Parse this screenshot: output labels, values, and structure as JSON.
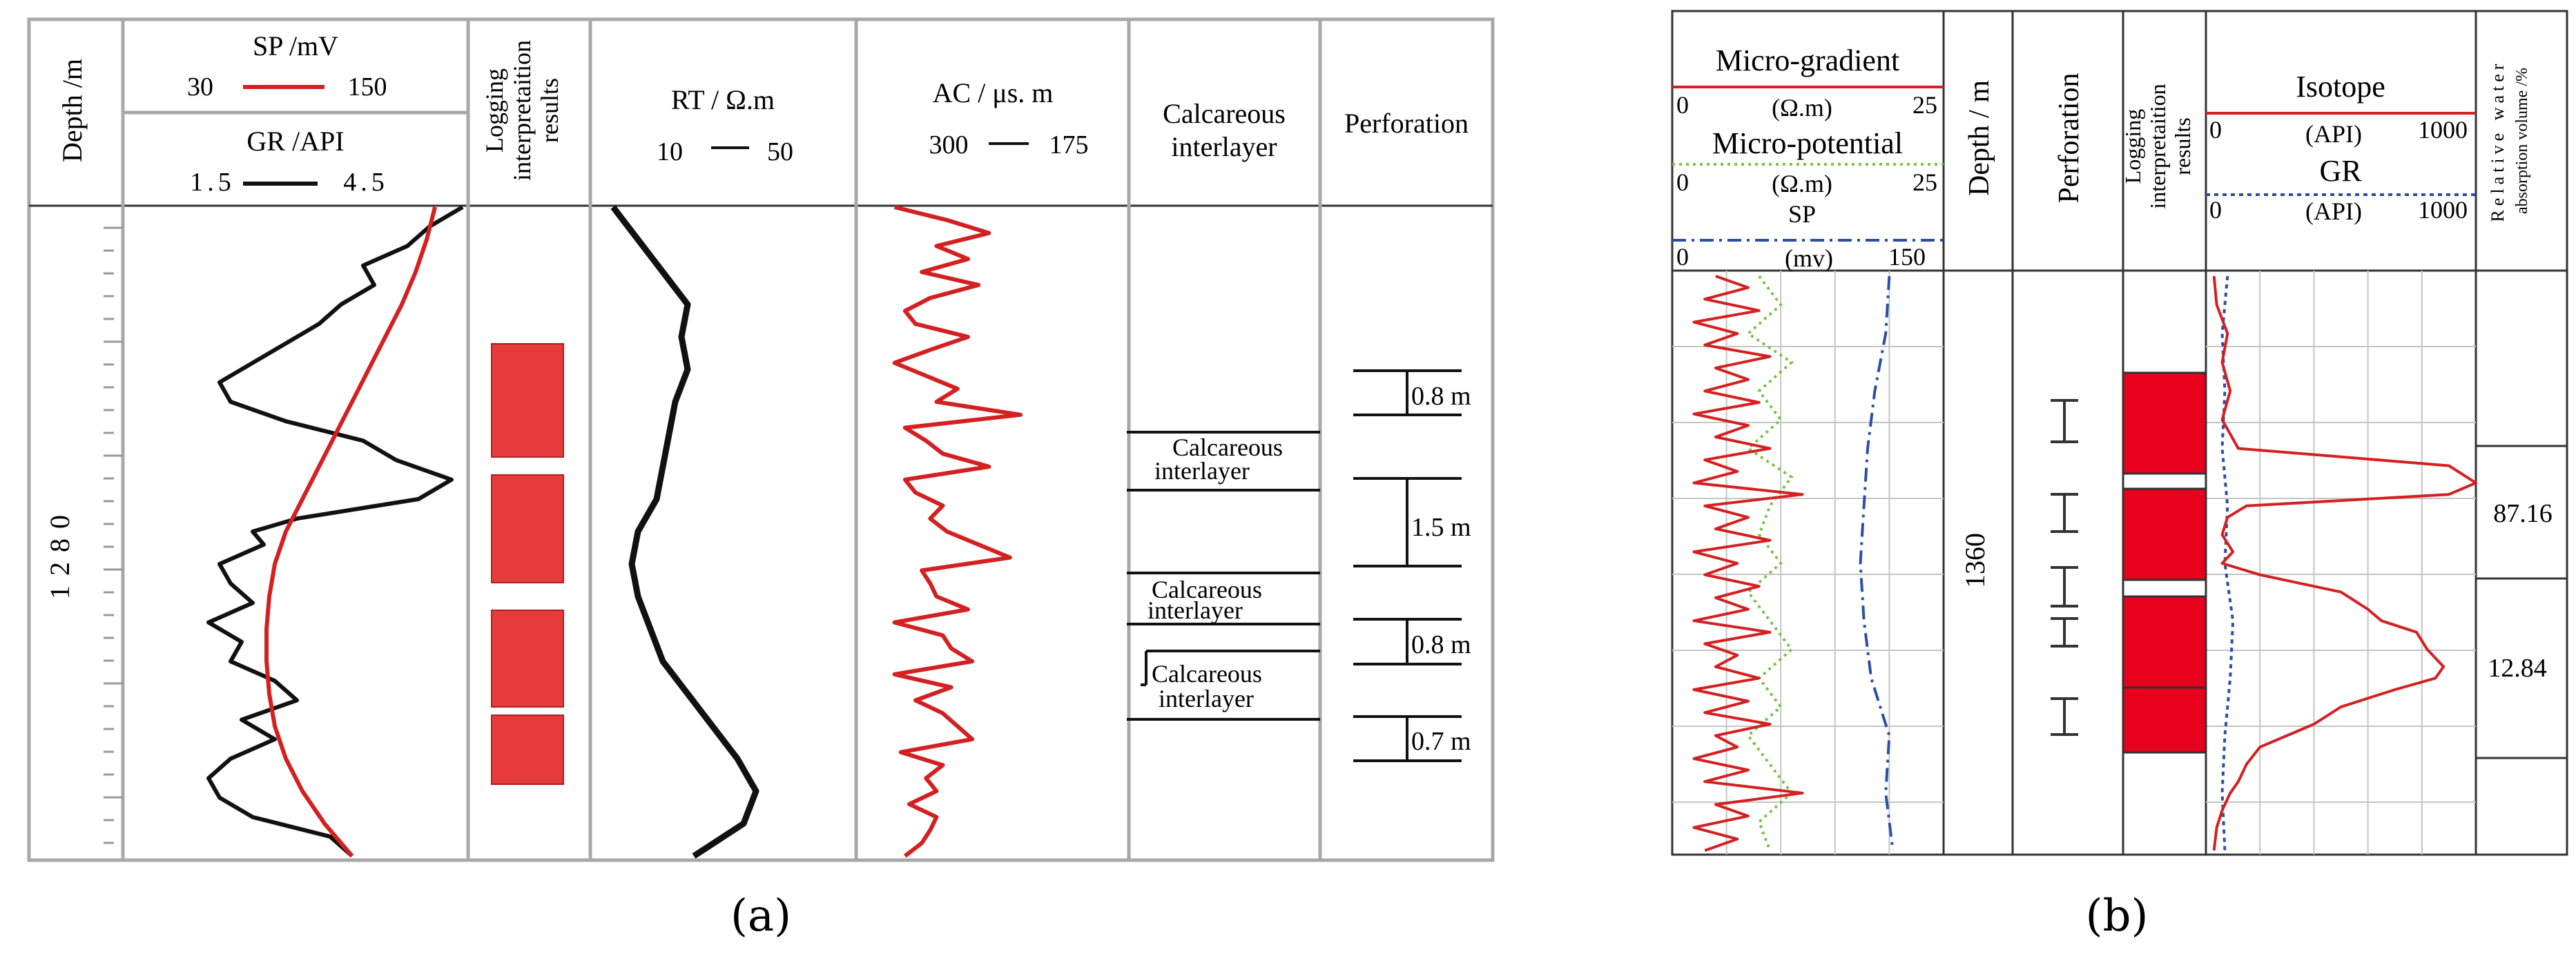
{
  "figure": {
    "caption_a": "(a)",
    "caption_b": "(b)"
  },
  "colors": {
    "red_curve": "#d42020",
    "black_curve": "#111111",
    "red_block": "#e63b3b",
    "red_block_b": "#e8001c",
    "blue_dash": "#2b4fa8",
    "green_dot": "#7cc24a",
    "grid": "#bdbdbd",
    "border": "#a8a8a8"
  },
  "panel_a": {
    "headers": {
      "depth": "Depth /m",
      "sp": "SP /mV",
      "sp_min": "30",
      "sp_max": "150",
      "gr": "GR /API",
      "gr_min": "1.5",
      "gr_max": "4.5",
      "logging_1": "Logging",
      "logging_2": "interpretaition",
      "logging_3": "results",
      "rt": "RT / Ω.m",
      "rt_min": "10",
      "rt_max": "50",
      "ac": "AC / μs. m",
      "ac_min": "300",
      "ac_max": "175",
      "calc_1": "Calcareous",
      "calc_2": "interlayer",
      "perforation": "Perforation"
    },
    "depth_label": "1280",
    "calc_labels": [
      [
        "Calcareous",
        "interlayer"
      ],
      [
        "Calcareous",
        "interlayer"
      ],
      [
        "Calcareous",
        "interlayer"
      ]
    ],
    "perforation_labels": [
      "0.8 m",
      "1.5 m",
      "0.8 m",
      "0.7 m"
    ]
  },
  "panel_b": {
    "headers": {
      "micro_gradient": "Micro-gradient",
      "mg_unit": "(Ω.m)",
      "mg_min": "0",
      "mg_max": "25",
      "micro_potential": "Micro-potential",
      "mp_unit": "(Ω.m)",
      "mp_min": "0",
      "mp_max": "25",
      "sp": "SP",
      "sp_unit": "(mv)",
      "sp_min": "0",
      "sp_max": "150",
      "depth": "Depth / m",
      "perforation": "Perforation",
      "logging_1": "Logging",
      "logging_2": "interpretaition",
      "logging_3": "results",
      "isotope": "Isotope",
      "iso_unit": "(API)",
      "iso_min": "0",
      "iso_max": "1000",
      "gr": "GR",
      "gr_unit": "(API)",
      "gr_min": "0",
      "gr_max": "1000",
      "rel_1": "Relative water",
      "rel_2": "absorption volume /%"
    },
    "depth_label": "1360",
    "rel_values": [
      "87.16",
      "12.84"
    ]
  },
  "chart_data": [
    {
      "type": "line",
      "panel": "a",
      "y_axis": "depth",
      "series": [
        {
          "name": "SP",
          "xlim": [
            30,
            150
          ],
          "color": "red",
          "depth": [
            0,
            0.05,
            0.1,
            0.15,
            0.2,
            0.25,
            0.3,
            0.35,
            0.4,
            0.45,
            0.5,
            0.55,
            0.6,
            0.65,
            0.7,
            0.75,
            0.8,
            0.85,
            0.9,
            0.95,
            1.0
          ],
          "values": [
            140,
            137,
            133,
            128,
            122,
            116,
            110,
            104,
            98,
            92,
            86,
            82,
            80,
            79,
            79,
            80,
            82,
            86,
            92,
            100,
            110
          ]
        },
        {
          "name": "GR",
          "xlim": [
            1.5,
            4.5
          ],
          "color": "black",
          "depth": [
            0,
            0.03,
            0.06,
            0.09,
            0.12,
            0.15,
            0.18,
            0.21,
            0.24,
            0.27,
            0.3,
            0.33,
            0.36,
            0.39,
            0.42,
            0.45,
            0.48,
            0.5,
            0.52,
            0.55,
            0.58,
            0.61,
            0.64,
            0.67,
            0.7,
            0.73,
            0.76,
            0.79,
            0.82,
            0.85,
            0.88,
            0.91,
            0.94,
            0.97,
            1.0
          ],
          "values": [
            4.5,
            4.2,
            4.0,
            3.6,
            3.7,
            3.4,
            3.2,
            2.9,
            2.6,
            2.3,
            2.4,
            2.9,
            3.6,
            3.9,
            4.4,
            4.1,
            3.0,
            2.6,
            2.7,
            2.3,
            2.4,
            2.6,
            2.2,
            2.5,
            2.4,
            2.8,
            3.0,
            2.5,
            2.8,
            2.4,
            2.2,
            2.3,
            2.6,
            3.3,
            3.5
          ]
        },
        {
          "name": "RT",
          "xlim": [
            10,
            50
          ],
          "color": "black",
          "depth": [
            0,
            0.05,
            0.1,
            0.15,
            0.2,
            0.25,
            0.3,
            0.35,
            0.4,
            0.45,
            0.5,
            0.55,
            0.6,
            0.65,
            0.7,
            0.75,
            0.8,
            0.85,
            0.9,
            0.95,
            1.0
          ],
          "values": [
            12,
            16,
            20,
            24,
            23,
            24,
            22,
            21,
            20,
            19,
            16,
            15,
            16,
            18,
            20,
            24,
            28,
            32,
            35,
            33,
            25
          ]
        },
        {
          "name": "AC",
          "xlim": [
            300,
            175
          ],
          "color": "red",
          "depth": [
            0,
            0.02,
            0.04,
            0.06,
            0.08,
            0.1,
            0.12,
            0.14,
            0.16,
            0.18,
            0.2,
            0.22,
            0.24,
            0.26,
            0.28,
            0.3,
            0.32,
            0.34,
            0.36,
            0.38,
            0.4,
            0.42,
            0.44,
            0.46,
            0.48,
            0.5,
            0.52,
            0.54,
            0.56,
            0.58,
            0.6,
            0.62,
            0.64,
            0.66,
            0.68,
            0.7,
            0.72,
            0.74,
            0.76,
            0.78,
            0.8,
            0.82,
            0.84,
            0.86,
            0.88,
            0.9,
            0.92,
            0.94,
            0.96,
            0.98,
            1.0
          ],
          "values": [
            285,
            260,
            240,
            265,
            250,
            272,
            245,
            268,
            280,
            275,
            250,
            268,
            285,
            270,
            255,
            265,
            225,
            280,
            270,
            262,
            240,
            280,
            275,
            262,
            268,
            260,
            245,
            230,
            272,
            268,
            265,
            250,
            285,
            262,
            258,
            248,
            285,
            258,
            275,
            262,
            255,
            248,
            282,
            262,
            270,
            265,
            278,
            265,
            268,
            272,
            280
          ]
        }
      ]
    },
    {
      "type": "line",
      "panel": "b",
      "y_axis": "depth",
      "series": [
        {
          "name": "Micro-gradient",
          "xlim": [
            0,
            25
          ],
          "color": "red",
          "depth": [
            0,
            0.02,
            0.04,
            0.06,
            0.08,
            0.1,
            0.12,
            0.14,
            0.16,
            0.18,
            0.2,
            0.22,
            0.24,
            0.26,
            0.28,
            0.3,
            0.32,
            0.34,
            0.36,
            0.38,
            0.4,
            0.42,
            0.44,
            0.46,
            0.48,
            0.5,
            0.52,
            0.54,
            0.56,
            0.58,
            0.6,
            0.62,
            0.64,
            0.66,
            0.68,
            0.7,
            0.72,
            0.74,
            0.76,
            0.78,
            0.8,
            0.82,
            0.84,
            0.86,
            0.88,
            0.9,
            0.92,
            0.94,
            0.96,
            0.98,
            1.0
          ],
          "values": [
            4,
            7,
            3,
            8,
            2,
            6,
            3,
            9,
            4,
            7,
            3,
            8,
            2,
            7,
            4,
            9,
            3,
            6,
            2,
            12,
            3,
            7,
            4,
            9,
            2,
            6,
            3,
            8,
            4,
            7,
            2,
            9,
            3,
            6,
            4,
            8,
            2,
            7,
            3,
            9,
            4,
            6,
            2,
            7,
            3,
            12,
            4,
            7,
            2,
            6,
            3
          ]
        },
        {
          "name": "Micro-potential",
          "xlim": [
            0,
            25
          ],
          "color": "green",
          "depth": [
            0,
            0.05,
            0.1,
            0.15,
            0.2,
            0.25,
            0.3,
            0.35,
            0.4,
            0.45,
            0.5,
            0.55,
            0.6,
            0.65,
            0.7,
            0.75,
            0.8,
            0.85,
            0.9,
            0.95,
            1.0
          ],
          "values": [
            8,
            10,
            7,
            11,
            8,
            10,
            7,
            11,
            9,
            8,
            10,
            7,
            9,
            11,
            8,
            10,
            7,
            9,
            11,
            8,
            9
          ]
        },
        {
          "name": "SP",
          "xlim": [
            0,
            150
          ],
          "color": "blue",
          "depth": [
            0,
            0.1,
            0.2,
            0.3,
            0.4,
            0.5,
            0.6,
            0.7,
            0.8,
            0.9,
            1.0
          ],
          "values": [
            120,
            118,
            112,
            108,
            106,
            104,
            106,
            110,
            120,
            118,
            122
          ]
        },
        {
          "name": "Isotope",
          "xlim": [
            0,
            1000
          ],
          "color": "red",
          "depth": [
            0,
            0.05,
            0.1,
            0.15,
            0.2,
            0.25,
            0.3,
            0.33,
            0.36,
            0.38,
            0.4,
            0.42,
            0.45,
            0.48,
            0.5,
            0.52,
            0.55,
            0.58,
            0.6,
            0.62,
            0.65,
            0.68,
            0.7,
            0.72,
            0.75,
            0.78,
            0.8,
            0.82,
            0.85,
            0.88,
            0.9,
            0.93,
            0.96,
            1.0
          ],
          "values": [
            30,
            40,
            80,
            60,
            90,
            60,
            120,
            900,
            1000,
            900,
            150,
            80,
            60,
            100,
            60,
            200,
            500,
            600,
            650,
            780,
            820,
            880,
            850,
            700,
            500,
            400,
            300,
            200,
            150,
            120,
            90,
            60,
            40,
            30
          ]
        },
        {
          "name": "GR",
          "xlim": [
            0,
            1000
          ],
          "color": "blue",
          "depth": [
            0,
            0.1,
            0.2,
            0.3,
            0.4,
            0.5,
            0.6,
            0.7,
            0.8,
            0.9,
            1.0
          ],
          "values": [
            80,
            60,
            70,
            60,
            80,
            70,
            100,
            90,
            70,
            60,
            70
          ]
        }
      ]
    }
  ]
}
